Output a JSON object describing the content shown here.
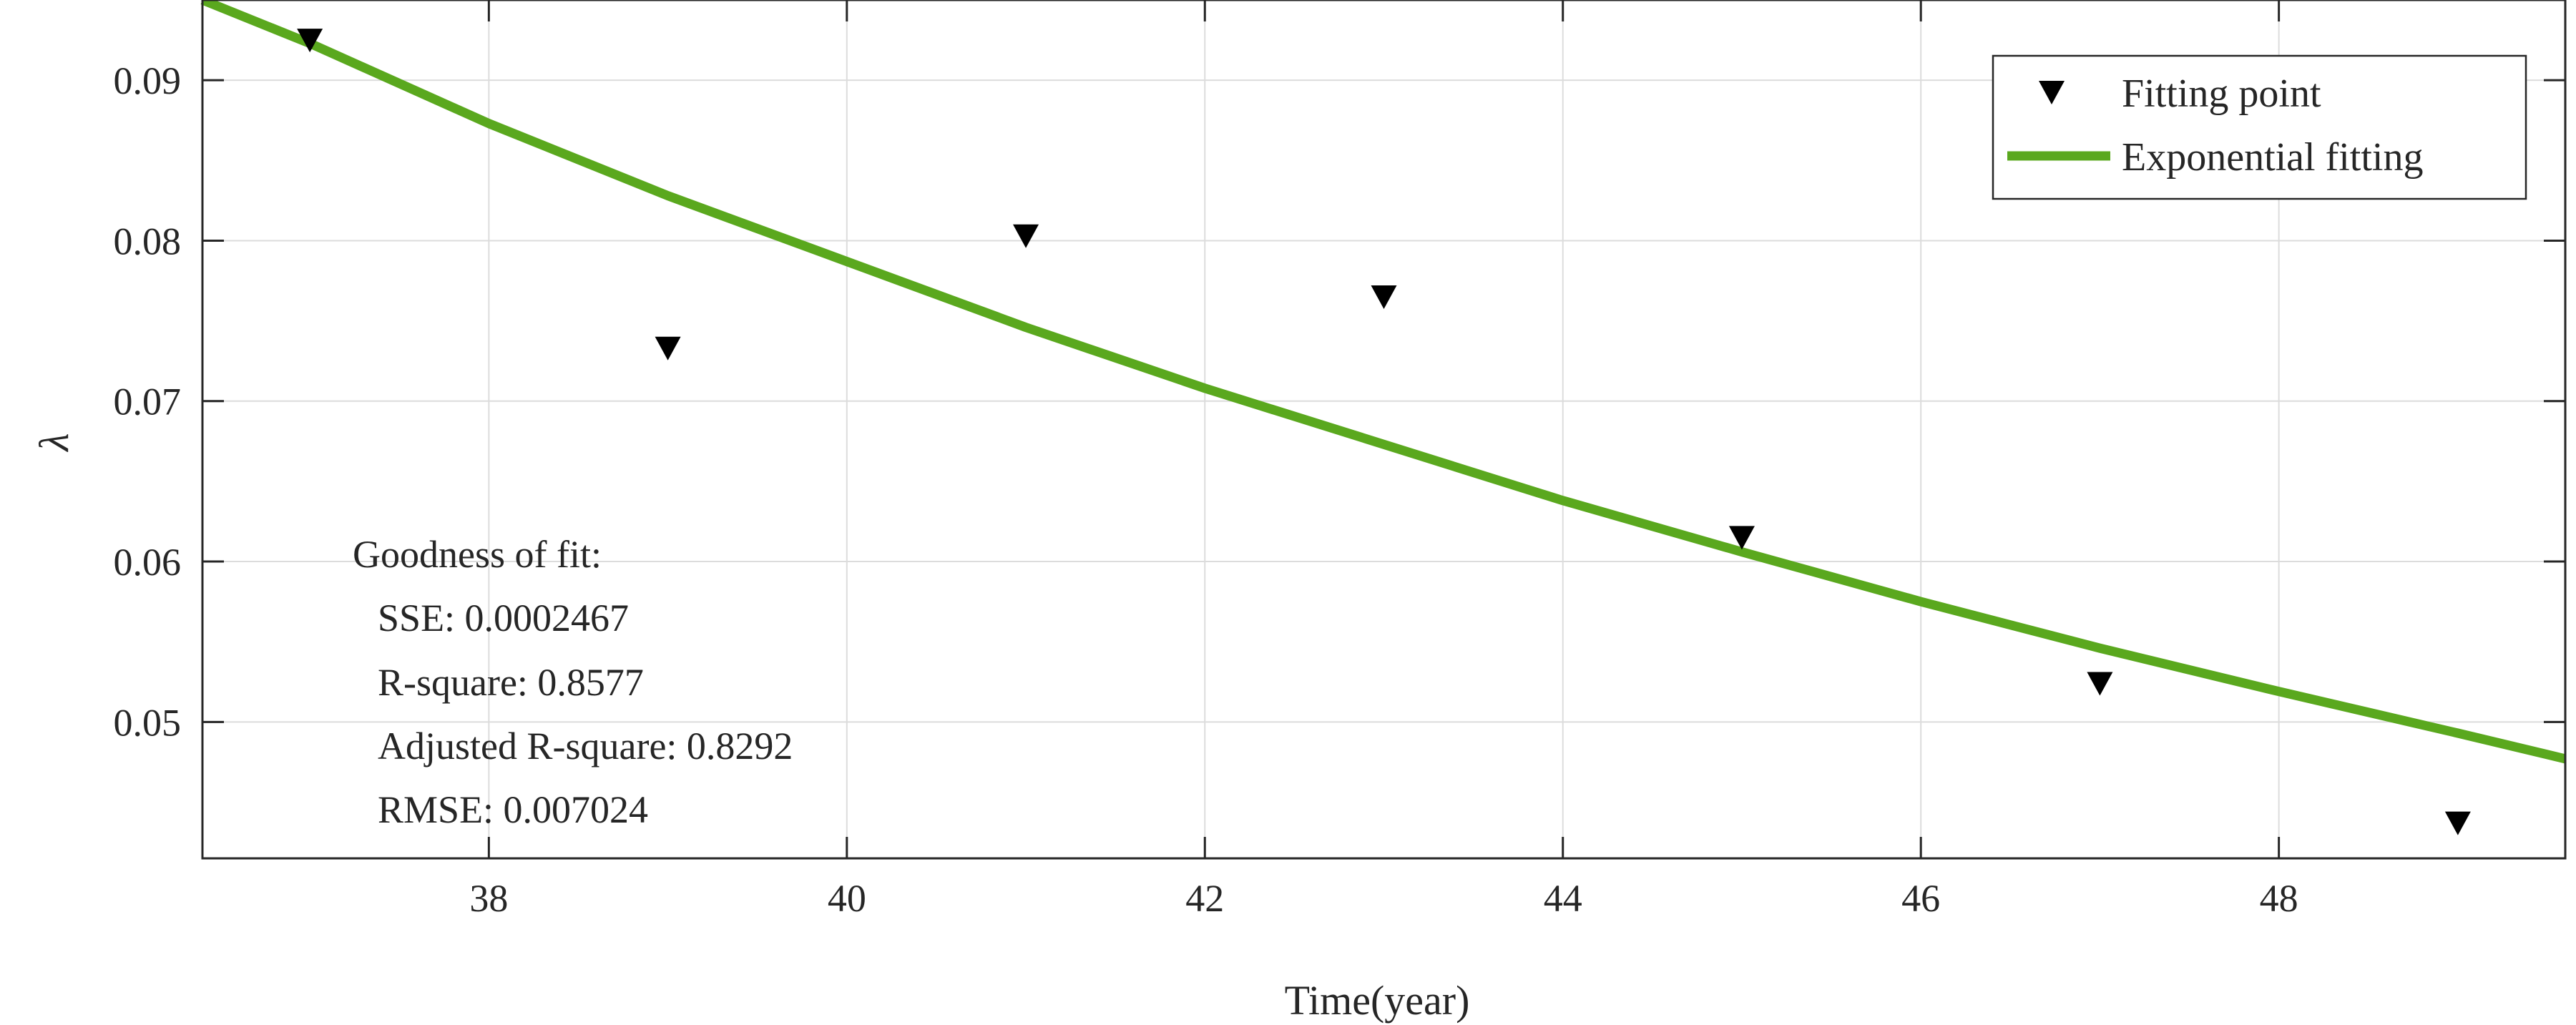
{
  "chart_data": {
    "type": "scatter",
    "title": "",
    "xlabel": "Time(year)",
    "ylabel": "λ",
    "xlim": [
      36.4,
      49.6
    ],
    "ylim": [
      0.0415,
      0.095
    ],
    "x_ticks": [
      38,
      40,
      42,
      44,
      46,
      48
    ],
    "y_ticks": [
      0.05,
      0.06,
      0.07,
      0.08,
      0.09
    ],
    "x_tick_labels": [
      "38",
      "40",
      "42",
      "44",
      "46",
      "48"
    ],
    "y_tick_labels": [
      "0.05",
      "0.06",
      "0.07",
      "0.08",
      "0.09"
    ],
    "grid": true,
    "legend_position": "top-right",
    "series": [
      {
        "name": "Fitting point",
        "kind": "scatter",
        "marker": "down-triangle",
        "color": "#000000",
        "x": [
          37,
          39,
          41,
          43,
          45,
          47,
          49
        ],
        "y": [
          0.0925,
          0.0733,
          0.0803,
          0.0765,
          0.0615,
          0.0524,
          0.0437
        ]
      },
      {
        "name": "Exponential fitting",
        "kind": "line",
        "color": "#5aa81e",
        "x": [
          36.4,
          37,
          38,
          39,
          40,
          41,
          42,
          43,
          44,
          45,
          46,
          47,
          48,
          49,
          49.6
        ],
        "y": [
          0.095,
          0.0923,
          0.0873,
          0.0828,
          0.0787,
          0.0746,
          0.0708,
          0.0673,
          0.0638,
          0.0606,
          0.0575,
          0.0546,
          0.0519,
          0.0493,
          0.0477
        ]
      }
    ],
    "annotation": {
      "lines": [
        "Goodness of fit:",
        "SSE: 0.0002467",
        "R-square: 0.8577",
        "Adjusted R-square: 0.8292",
        "RMSE: 0.007024"
      ]
    }
  }
}
